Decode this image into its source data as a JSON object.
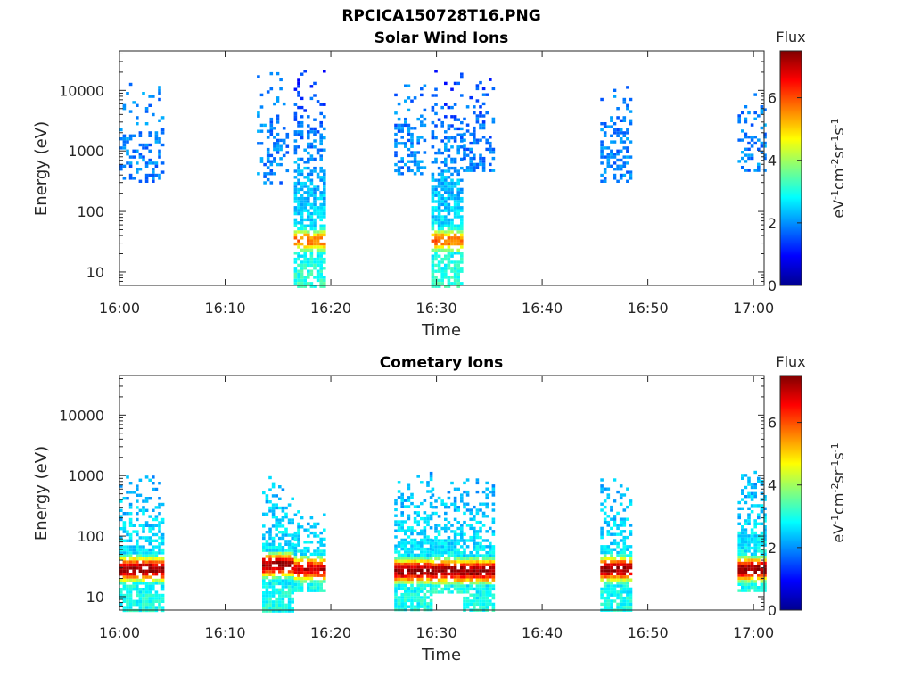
{
  "figure_title": "RPCICA150728T16.PNG",
  "colorbar_min": 0,
  "colorbar_max": 7.5,
  "chart_data": [
    {
      "type": "heatmap",
      "title": "Solar Wind Ions",
      "xlabel": "Time",
      "ylabel": "Energy (eV)",
      "yscale": "log",
      "ylim": [
        6,
        45000
      ],
      "xlim": [
        "16:00",
        "17:01"
      ],
      "x_ticks": [
        "16:00",
        "16:10",
        "16:20",
        "16:30",
        "16:40",
        "16:50",
        "17:00"
      ],
      "y_ticks": [
        {
          "value": 10,
          "label": "10"
        },
        {
          "value": 100,
          "label": "100"
        },
        {
          "value": 1000,
          "label": "1000"
        },
        {
          "value": 10000,
          "label": "10000"
        }
      ],
      "colorbar": {
        "label": "Flux",
        "units": "eV-1cm-2sr-1s-1",
        "ticks": [
          "0",
          "2",
          "4",
          "6"
        ],
        "range": [
          0,
          7.5
        ]
      },
      "bursts": [
        {
          "start": "16:00",
          "end": "16:04",
          "emin": 300,
          "emax": 15000,
          "low_flux": 1.9,
          "high_flux": 1.9,
          "peak_energy": 0,
          "peak_flux": 0,
          "density": 0.35
        },
        {
          "start": "16:13",
          "end": "16:16",
          "emin": 300,
          "emax": 20000,
          "low_flux": 1.9,
          "high_flux": 1.9,
          "peak_energy": 0,
          "peak_flux": 0,
          "density": 0.35
        },
        {
          "start": "16:16.5",
          "end": "16:19.5",
          "emin": 6,
          "emax": 22000,
          "low_flux": 3.2,
          "high_flux": 1.2,
          "peak_energy": 35,
          "peak_flux": 5.8,
          "density": 0.75
        },
        {
          "start": "16:26",
          "end": "16:29",
          "emin": 400,
          "emax": 20000,
          "low_flux": 1.9,
          "high_flux": 1.8,
          "peak_energy": 0,
          "peak_flux": 0,
          "density": 0.4
        },
        {
          "start": "16:29.5",
          "end": "16:32.5",
          "emin": 6,
          "emax": 22000,
          "low_flux": 3.2,
          "high_flux": 1.2,
          "peak_energy": 35,
          "peak_flux": 5.8,
          "density": 0.75
        },
        {
          "start": "16:32.5",
          "end": "16:35.5",
          "emin": 500,
          "emax": 16000,
          "low_flux": 1.9,
          "high_flux": 1.5,
          "peak_energy": 0,
          "peak_flux": 0,
          "density": 0.4
        },
        {
          "start": "16:45.5",
          "end": "16:48.5",
          "emin": 300,
          "emax": 15000,
          "low_flux": 1.9,
          "high_flux": 1.8,
          "peak_energy": 0,
          "peak_flux": 0,
          "density": 0.4
        },
        {
          "start": "16:58.5",
          "end": "17:01",
          "emin": 500,
          "emax": 9000,
          "low_flux": 1.9,
          "high_flux": 1.9,
          "peak_energy": 0,
          "peak_flux": 0,
          "density": 0.4
        }
      ]
    },
    {
      "type": "heatmap",
      "title": "Cometary Ions",
      "xlabel": "Time",
      "ylabel": "Energy (eV)",
      "yscale": "log",
      "ylim": [
        6,
        45000
      ],
      "xlim": [
        "16:00",
        "17:01"
      ],
      "x_ticks": [
        "16:00",
        "16:10",
        "16:20",
        "16:30",
        "16:40",
        "16:50",
        "17:00"
      ],
      "y_ticks": [
        {
          "value": 10,
          "label": "10"
        },
        {
          "value": 100,
          "label": "100"
        },
        {
          "value": 1000,
          "label": "1000"
        },
        {
          "value": 10000,
          "label": "10000"
        }
      ],
      "colorbar": {
        "label": "Flux",
        "units": "eV-1cm-2sr-1s-1",
        "ticks": [
          "0",
          "2",
          "4",
          "6"
        ],
        "range": [
          0,
          7.5
        ]
      },
      "bursts": [
        {
          "start": "16:00",
          "end": "16:04",
          "emin": 6,
          "emax": 1000,
          "low_flux": 3.0,
          "high_flux": 2.2,
          "peak_energy": 30,
          "peak_flux": 7.4,
          "density": 0.85
        },
        {
          "start": "16:13.5",
          "end": "16:16.5",
          "emin": 6,
          "emax": 1100,
          "low_flux": 3.0,
          "high_flux": 2.2,
          "peak_energy": 35,
          "peak_flux": 7.4,
          "density": 0.85
        },
        {
          "start": "16:16.5",
          "end": "16:19.5",
          "emin": 12,
          "emax": 300,
          "low_flux": 3.0,
          "high_flux": 2.4,
          "peak_energy": 30,
          "peak_flux": 7.0,
          "density": 0.8
        },
        {
          "start": "16:26",
          "end": "16:29.5",
          "emin": 6,
          "emax": 1300,
          "low_flux": 3.0,
          "high_flux": 2.2,
          "peak_energy": 28,
          "peak_flux": 7.4,
          "density": 0.85
        },
        {
          "start": "16:29.5",
          "end": "16:32.5",
          "emin": 12,
          "emax": 800,
          "low_flux": 3.0,
          "high_flux": 2.2,
          "peak_energy": 28,
          "peak_flux": 7.4,
          "density": 0.85
        },
        {
          "start": "16:32.5",
          "end": "16:35.5",
          "emin": 6,
          "emax": 900,
          "low_flux": 3.0,
          "high_flux": 2.2,
          "peak_energy": 28,
          "peak_flux": 7.4,
          "density": 0.85
        },
        {
          "start": "16:45.5",
          "end": "16:48.5",
          "emin": 6,
          "emax": 900,
          "low_flux": 3.0,
          "high_flux": 2.2,
          "peak_energy": 30,
          "peak_flux": 7.4,
          "density": 0.85
        },
        {
          "start": "16:58.5",
          "end": "17:01",
          "emin": 12,
          "emax": 1200,
          "low_flux": 3.0,
          "high_flux": 2.2,
          "peak_energy": 30,
          "peak_flux": 7.4,
          "density": 0.85
        }
      ]
    }
  ]
}
